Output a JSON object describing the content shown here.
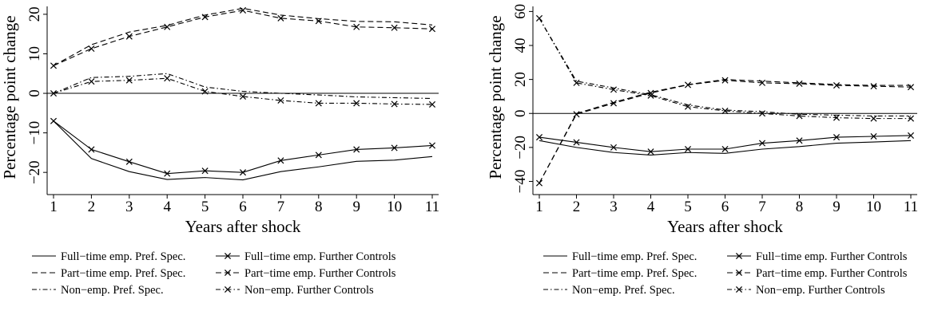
{
  "chart_data": [
    {
      "type": "line",
      "xlabel": "Years after shock",
      "ylabel": "Percentage point change",
      "x": [
        1,
        2,
        3,
        4,
        5,
        6,
        7,
        8,
        9,
        10,
        11
      ],
      "xlim": [
        1,
        11
      ],
      "ylim": [
        -24,
        22
      ],
      "yticks": [
        -20,
        -10,
        0,
        10,
        20
      ],
      "yticklabels": [
        "−20",
        "−10",
        "0",
        "10",
        "20"
      ],
      "xticklabels": [
        "1",
        "2",
        "3",
        "4",
        "5",
        "6",
        "7",
        "8",
        "9",
        "10",
        "11"
      ],
      "hline": 0,
      "series": [
        {
          "name": "Full−time emp. Pref. Spec.",
          "style": "solid",
          "marker": "none",
          "values": [
            -7,
            -16.5,
            -19.8,
            -21.8,
            -21.3,
            -21.9,
            -19.8,
            -18.6,
            -17.2,
            -16.9,
            -16
          ]
        },
        {
          "name": "Full−time emp. Further Controls",
          "style": "solid",
          "marker": "x",
          "values": [
            -7,
            -14.2,
            -17.3,
            -20.3,
            -19.6,
            -20,
            -17,
            -15.6,
            -14.2,
            -13.8,
            -13.2
          ]
        },
        {
          "name": "Part−time emp. Pref. Spec.",
          "style": "dashed",
          "marker": "none",
          "values": [
            7,
            12.3,
            15.5,
            17.2,
            19.8,
            21.5,
            19.8,
            18.9,
            18.2,
            18.1,
            17.3
          ]
        },
        {
          "name": "Part−time emp. Further Controls",
          "style": "dashed",
          "marker": "x",
          "values": [
            7,
            11.3,
            14.4,
            16.8,
            19.3,
            21,
            19,
            18.3,
            16.8,
            16.6,
            16.3
          ]
        },
        {
          "name": "Non−emp. Pref. Spec.",
          "style": "dashdot",
          "marker": "none",
          "values": [
            0,
            4,
            4.3,
            5,
            1.6,
            0.5,
            0,
            -0.4,
            -0.9,
            -1.1,
            -1.3
          ]
        },
        {
          "name": "Non−emp. Further Controls",
          "style": "dashdot",
          "marker": "x",
          "values": [
            0,
            3,
            3.3,
            3.8,
            0.5,
            -0.8,
            -1.8,
            -2.5,
            -2.5,
            -2.7,
            -2.8
          ]
        }
      ]
    },
    {
      "type": "line",
      "xlabel": "Years after shock",
      "ylabel": "Percentage point change",
      "x": [
        1,
        2,
        3,
        4,
        5,
        6,
        7,
        8,
        9,
        10,
        11
      ],
      "xlim": [
        1,
        11
      ],
      "ylim": [
        -44,
        63
      ],
      "yticks": [
        -40,
        -20,
        0,
        20,
        40,
        60
      ],
      "yticklabels": [
        "−40",
        "−20",
        "0",
        "20",
        "40",
        "60"
      ],
      "xticklabels": [
        "1",
        "2",
        "3",
        "4",
        "5",
        "6",
        "7",
        "8",
        "9",
        "10",
        "11"
      ],
      "hline": 0,
      "series": [
        {
          "name": "Full−time emp. Pref. Spec.",
          "style": "solid",
          "marker": "none",
          "values": [
            -16,
            -20,
            -23,
            -24.5,
            -23,
            -23.5,
            -21,
            -19.5,
            -17.5,
            -16.8,
            -16
          ]
        },
        {
          "name": "Full−time emp. Further Controls",
          "style": "solid",
          "marker": "x",
          "values": [
            -14,
            -17,
            -20,
            -22.5,
            -21,
            -21,
            -17.5,
            -16,
            -14,
            -13.5,
            -13
          ]
        },
        {
          "name": "Part−time emp. Pref. Spec.",
          "style": "dashed",
          "marker": "none",
          "values": [
            -41,
            0,
            6.5,
            12.5,
            17,
            20,
            19,
            18,
            17,
            16.5,
            16.5
          ]
        },
        {
          "name": "Part−time emp. Further Controls",
          "style": "dashed",
          "marker": "x",
          "values": [
            -41,
            -0.5,
            6,
            12,
            16.8,
            19.5,
            18,
            17.5,
            16.5,
            16,
            15.5
          ]
        },
        {
          "name": "Non−emp. Pref. Spec.",
          "style": "dashdot",
          "marker": "none",
          "values": [
            56,
            19,
            15,
            11,
            5,
            2,
            1,
            -0.5,
            -1,
            -1.5,
            -1.5
          ]
        },
        {
          "name": "Non−emp. Further Controls",
          "style": "dashdot",
          "marker": "x",
          "values": [
            56,
            18,
            14,
            10.5,
            4,
            1.5,
            0,
            -1.5,
            -2.5,
            -3,
            -3
          ]
        }
      ]
    }
  ]
}
